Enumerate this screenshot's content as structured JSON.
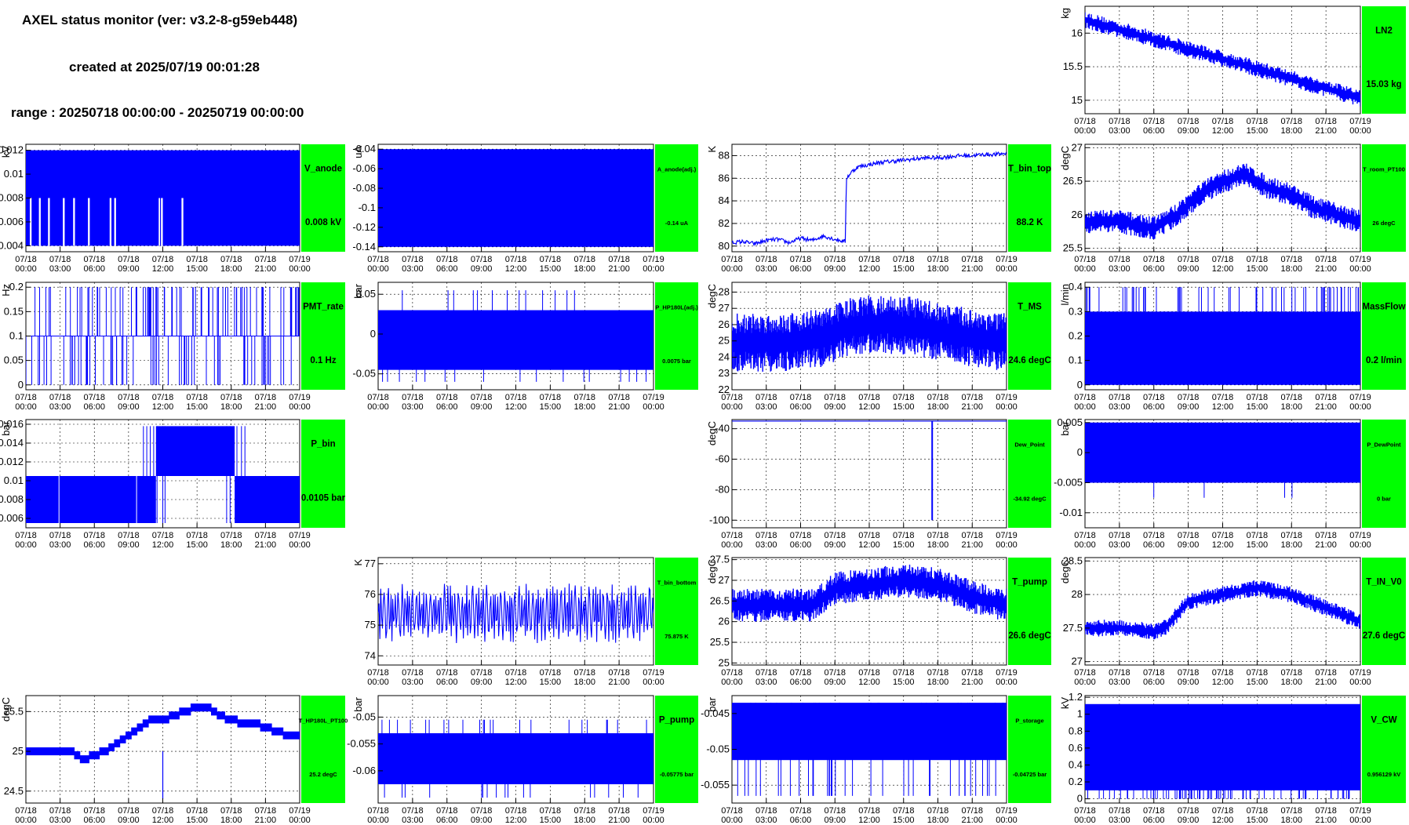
{
  "header": {
    "title": "AXEL status monitor (ver: v3.2-8-g59eb448)",
    "created": "created at 2025/07/19 00:01:28",
    "range": "range : 20250718 00:00:00 - 20250719 00:00:00"
  },
  "colors": {
    "line": "#0000ff",
    "badge": "#00ff00",
    "grid": "#000000"
  },
  "time_labels": [
    "07/18\n00:00",
    "07/18\n03:00",
    "07/18\n06:00",
    "07/18\n09:00",
    "07/18\n12:00",
    "07/18\n15:00",
    "07/18\n18:00",
    "07/18\n21:00",
    "07/19\n00:00"
  ],
  "chart_data": [
    {
      "id": "LN2",
      "type": "line",
      "ylabel": "kg",
      "ylim": [
        14.8,
        16.4
      ],
      "yticks": [
        "15",
        "15.5",
        "16"
      ],
      "ytick_values": [
        15,
        15.5,
        16
      ],
      "label": "LN2",
      "value_text": "15.03 kg",
      "label_size": "large",
      "value_size": "large",
      "series": [
        {
          "kind": "noisy_trend",
          "x": [
            0,
            24
          ],
          "y": [
            16.2,
            15.03
          ],
          "noise": 0.25,
          "n": 260
        }
      ]
    },
    {
      "id": "V_anode",
      "type": "line",
      "ylabel": "kV",
      "ylim": [
        0.0035,
        0.0125
      ],
      "yticks": [
        "0.004",
        "0.006",
        "0.008",
        "0.01",
        "0.012"
      ],
      "ytick_values": [
        0.004,
        0.006,
        0.008,
        0.01,
        0.012
      ],
      "label": "V_anode",
      "value_text": "0.008 kV",
      "label_size": "large",
      "value_size": "large",
      "series": [
        {
          "kind": "band",
          "x": [
            0,
            24
          ],
          "ymin": 0.004,
          "ymax": 0.012,
          "gaps": [
            [
              0.3,
              0.5
            ],
            [
              1.1,
              1.3
            ],
            [
              1.9,
              2.1
            ],
            [
              3.2,
              3.4
            ],
            [
              4.1,
              4.3
            ],
            [
              5.4,
              5.6
            ],
            [
              7.3,
              7.5
            ],
            [
              7.7,
              7.9
            ],
            [
              11.6,
              11.8
            ],
            [
              11.8,
              12.0
            ],
            [
              13.6,
              13.8
            ]
          ],
          "gap_top": 0.008
        }
      ]
    },
    {
      "id": "A_anode",
      "type": "line",
      "ylabel": "uA",
      "ylim": [
        -0.145,
        -0.035
      ],
      "yticks": [
        "-0.14",
        "-0.12",
        "-0.1",
        "-0.08",
        "-0.06",
        "-0.04"
      ],
      "ytick_values": [
        -0.14,
        -0.12,
        -0.1,
        -0.08,
        -0.06,
        -0.04
      ],
      "label": "A_anode(adj.)",
      "value_text": "-0.14 uA",
      "label_size": "small",
      "value_size": "small",
      "series": [
        {
          "kind": "band",
          "x": [
            0,
            24
          ],
          "ymin": -0.14,
          "ymax": -0.04
        }
      ]
    },
    {
      "id": "T_bin_top",
      "type": "line",
      "ylabel": "K",
      "ylim": [
        79.5,
        89
      ],
      "yticks": [
        "80",
        "82",
        "84",
        "86",
        "88"
      ],
      "ytick_values": [
        80,
        82,
        84,
        86,
        88
      ],
      "label": "T_bin_top",
      "value_text": "88.2 K",
      "label_size": "large",
      "value_size": "large",
      "series": [
        {
          "kind": "line",
          "x": [
            0,
            1,
            2,
            3,
            4,
            5,
            6,
            7,
            8,
            9,
            9.9,
            10,
            10.5,
            11,
            12,
            13,
            14,
            15,
            16,
            17,
            18,
            19,
            20,
            21,
            22,
            23,
            24
          ],
          "y": [
            80.3,
            80.4,
            80.2,
            80.5,
            80.6,
            80.3,
            80.7,
            80.5,
            80.9,
            80.6,
            80.4,
            86,
            86.6,
            87,
            87.2,
            87.4,
            87.5,
            87.6,
            87.7,
            87.8,
            87.8,
            87.9,
            88,
            88,
            88.1,
            88.1,
            88.2
          ]
        }
      ]
    },
    {
      "id": "T_room_PT100",
      "type": "line",
      "ylabel": "degC",
      "ylim": [
        25.45,
        27.05
      ],
      "yticks": [
        "25.5",
        "26",
        "26.5",
        "27"
      ],
      "ytick_values": [
        25.5,
        26,
        26.5,
        27
      ],
      "label": "T_room_PT100",
      "value_text": "26 degC",
      "label_size": "small",
      "value_size": "small",
      "series": [
        {
          "kind": "noisy_line",
          "x": [
            0,
            3,
            6,
            8,
            10,
            12,
            14,
            16,
            18,
            20,
            22,
            24
          ],
          "y": [
            25.9,
            25.9,
            25.8,
            26.0,
            26.3,
            26.5,
            26.6,
            26.4,
            26.3,
            26.1,
            26.0,
            25.9
          ],
          "noise": 0.35,
          "n": 300
        }
      ]
    },
    {
      "id": "PMT_rate",
      "type": "line",
      "ylabel": "Hz",
      "ylim": [
        -0.01,
        0.21
      ],
      "yticks": [
        "0",
        "0.05",
        "0.1",
        "0.15",
        "0.2"
      ],
      "ytick_values": [
        0,
        0.05,
        0.1,
        0.15,
        0.2
      ],
      "label": "PMT_rate",
      "value_text": "0.1 Hz",
      "label_size": "large",
      "value_size": "large",
      "series": [
        {
          "kind": "spikes",
          "x": [
            0,
            24
          ],
          "base": 0.1,
          "levels": [
            0,
            0.2
          ],
          "n": 150
        }
      ]
    },
    {
      "id": "P_HP180L",
      "type": "line",
      "ylabel": "bar",
      "ylim": [
        -0.07,
        0.065
      ],
      "yticks": [
        "-0.05",
        "0",
        "0.05"
      ],
      "ytick_values": [
        -0.05,
        0,
        0.05
      ],
      "label": "P_HP180L(adj.)",
      "value_text": "0.0075 bar",
      "label_size": "small",
      "value_size": "small",
      "series": [
        {
          "kind": "band",
          "x": [
            0,
            24
          ],
          "ymin": -0.045,
          "ymax": 0.03
        },
        {
          "kind": "spikes",
          "x": [
            0,
            24
          ],
          "base": 0.0,
          "levels": [
            -0.06,
            0.055
          ],
          "n": 30
        }
      ]
    },
    {
      "id": "T_MS",
      "type": "line",
      "ylabel": "degC",
      "ylim": [
        22,
        28.6
      ],
      "yticks": [
        "22",
        "23",
        "24",
        "25",
        "26",
        "27",
        "28"
      ],
      "ytick_values": [
        22,
        23,
        24,
        25,
        26,
        27,
        28
      ],
      "label": "T_MS",
      "value_text": "24.6 degC",
      "label_size": "large",
      "value_size": "large",
      "series": [
        {
          "kind": "noisy_line",
          "x": [
            0,
            4,
            8,
            10,
            12,
            14,
            16,
            18,
            20,
            22,
            24
          ],
          "y": [
            24.9,
            24.9,
            25.2,
            25.8,
            26.0,
            26.0,
            25.9,
            25.6,
            25.3,
            25.1,
            24.9
          ],
          "noise": 3.6,
          "n": 420
        }
      ]
    },
    {
      "id": "MassFlow",
      "type": "line",
      "ylabel": "l/min",
      "ylim": [
        -0.02,
        0.42
      ],
      "yticks": [
        "0",
        "0.1",
        "0.2",
        "0.3",
        "0.4"
      ],
      "ytick_values": [
        0,
        0.1,
        0.2,
        0.3,
        0.4
      ],
      "label": "MassFlow",
      "value_text": "0.2 l/min",
      "label_size": "large",
      "value_size": "large",
      "series": [
        {
          "kind": "band",
          "x": [
            0,
            24
          ],
          "ymin": 0,
          "ymax": 0.3
        },
        {
          "kind": "spikes",
          "x": [
            0,
            24
          ],
          "base": 0.3,
          "levels": [
            0.4
          ],
          "n": 60
        }
      ]
    },
    {
      "id": "P_bin",
      "type": "line",
      "ylabel": "bar",
      "ylim": [
        0.005,
        0.0165
      ],
      "yticks": [
        "0.006",
        "0.008",
        "0.01",
        "0.012",
        "0.014",
        "0.016"
      ],
      "ytick_values": [
        0.006,
        0.008,
        0.01,
        0.012,
        0.014,
        0.016
      ],
      "label": "P_bin",
      "value_text": "0.0105 bar",
      "label_size": "large",
      "value_size": "large",
      "series": [
        {
          "kind": "pbin",
          "x": [
            0,
            24
          ],
          "low": [
            0.0055,
            0.0105
          ],
          "high": [
            0.0105,
            0.0158
          ],
          "high_window": [
            11.4,
            18.3
          ]
        }
      ]
    },
    {
      "id": "Dew_Point",
      "type": "line",
      "ylabel": "degC",
      "ylim": [
        -105,
        -34
      ],
      "yticks": [
        "-100",
        "-80",
        "-60",
        "-40"
      ],
      "ytick_values": [
        -100,
        -80,
        -60,
        -40
      ],
      "label": "Dew_Point",
      "value_text": "-34.92 degC",
      "label_size": "small",
      "value_size": "small",
      "series": [
        {
          "kind": "flat_spike",
          "x": [
            0,
            24
          ],
          "y": -35,
          "spike_x": 17.5,
          "spike_y": -100
        }
      ]
    },
    {
      "id": "P_DewPoint",
      "type": "line",
      "ylabel": "bar",
      "ylim": [
        -0.0125,
        0.0055
      ],
      "yticks": [
        "-0.01",
        "-0.005",
        "0",
        "0.005"
      ],
      "ytick_values": [
        -0.01,
        -0.005,
        0,
        0.005
      ],
      "label": "P_DewPoint",
      "value_text": "0 bar",
      "label_size": "small",
      "value_size": "small",
      "series": [
        {
          "kind": "band",
          "x": [
            0,
            24
          ],
          "ymin": -0.005,
          "ymax": 0.005
        },
        {
          "kind": "spikes",
          "x": [
            0,
            24
          ],
          "base": 0,
          "levels": [
            -0.0075
          ],
          "n": 4
        }
      ]
    },
    {
      "id": "T_bin_bottom",
      "type": "line",
      "ylabel": "K",
      "ylim": [
        73.7,
        77.2
      ],
      "yticks": [
        "74",
        "75",
        "76",
        "77"
      ],
      "ytick_values": [
        74,
        75,
        76,
        77
      ],
      "label": "T_bin_bottom",
      "value_text": "75.875 K",
      "label_size": "small",
      "value_size": "small",
      "series": [
        {
          "kind": "oscillate",
          "x": [
            0,
            24
          ],
          "center": 75.4,
          "amp": 1.0,
          "n": 320
        }
      ]
    },
    {
      "id": "T_pump",
      "type": "line",
      "ylabel": "degC",
      "ylim": [
        24.95,
        27.55
      ],
      "yticks": [
        "25",
        "25.5",
        "26",
        "26.5",
        "27",
        "27.5"
      ],
      "ytick_values": [
        25,
        25.5,
        26,
        26.5,
        27,
        27.5
      ],
      "label": "T_pump",
      "value_text": "26.6 degC",
      "label_size": "large",
      "value_size": "large",
      "series": [
        {
          "kind": "noisy_line",
          "x": [
            0,
            4,
            7,
            9,
            12,
            15,
            18,
            21,
            24
          ],
          "y": [
            26.4,
            26.4,
            26.4,
            26.8,
            26.9,
            27.0,
            26.9,
            26.6,
            26.4
          ],
          "noise": 0.8,
          "n": 340
        }
      ]
    },
    {
      "id": "T_IN_V0",
      "type": "line",
      "ylabel": "degC",
      "ylim": [
        26.95,
        28.55
      ],
      "yticks": [
        "27",
        "27.5",
        "28",
        "28.5"
      ],
      "ytick_values": [
        27,
        27.5,
        28,
        28.5
      ],
      "label": "T_IN_V0",
      "value_text": "27.6 degC",
      "label_size": "large",
      "value_size": "large",
      "series": [
        {
          "kind": "noisy_line",
          "x": [
            0,
            3,
            6,
            7,
            9,
            12,
            15,
            18,
            21,
            24
          ],
          "y": [
            27.5,
            27.5,
            27.45,
            27.5,
            27.9,
            28.0,
            28.1,
            28.0,
            27.8,
            27.6
          ],
          "noise": 0.25,
          "n": 300
        }
      ]
    },
    {
      "id": "T_HP180L_PT100",
      "type": "line",
      "ylabel": "degC",
      "ylim": [
        24.35,
        25.7
      ],
      "yticks": [
        "24.5",
        "25",
        "25.5"
      ],
      "ytick_values": [
        24.5,
        25,
        25.5
      ],
      "label": "T_HP180L_PT100",
      "value_text": "25.2 degC",
      "label_size": "small",
      "value_size": "small",
      "series": [
        {
          "kind": "step_band",
          "x": [
            0,
            2,
            4,
            5,
            6,
            7,
            8,
            9,
            10,
            11,
            12,
            13,
            14,
            15,
            16,
            17,
            18,
            19,
            20,
            21,
            22,
            23,
            24
          ],
          "y": [
            25.0,
            25.0,
            25.0,
            24.9,
            24.95,
            25.0,
            25.1,
            25.2,
            25.3,
            25.4,
            25.4,
            25.45,
            25.5,
            25.55,
            25.55,
            25.45,
            25.4,
            25.35,
            25.35,
            25.3,
            25.25,
            25.2,
            25.2
          ],
          "w": 0.1
        }
      ]
    },
    {
      "id": "P_pump",
      "type": "line",
      "ylabel": "bar",
      "ylim": [
        -0.066,
        -0.046
      ],
      "yticks": [
        "-0.06",
        "-0.055",
        "-0.05"
      ],
      "ytick_values": [
        -0.06,
        -0.055,
        -0.05
      ],
      "label": "P_pump",
      "value_text": "-0.05775 bar",
      "label_size": "large",
      "value_size": "small",
      "series": [
        {
          "kind": "band",
          "x": [
            0,
            24
          ],
          "ymin": -0.0625,
          "ymax": -0.053
        },
        {
          "kind": "spikes",
          "x": [
            0,
            24
          ],
          "base": -0.0575,
          "levels": [
            -0.065,
            -0.0505
          ],
          "n": 40
        }
      ]
    },
    {
      "id": "P_storage",
      "type": "line",
      "ylabel": "bar",
      "ylim": [
        -0.0575,
        -0.0425
      ],
      "yticks": [
        "-0.055",
        "-0.05",
        "-0.045"
      ],
      "ytick_values": [
        -0.055,
        -0.05,
        -0.045
      ],
      "label": "P_storage",
      "value_text": "-0.04725 bar",
      "label_size": "small",
      "value_size": "small",
      "series": [
        {
          "kind": "band",
          "x": [
            0,
            24
          ],
          "ymin": -0.0515,
          "ymax": -0.0435
        },
        {
          "kind": "spikes",
          "x": [
            0,
            24
          ],
          "base": -0.0475,
          "levels": [
            -0.0565,
            -0.0435
          ],
          "n": 70
        }
      ]
    },
    {
      "id": "V_CW",
      "type": "line",
      "ylabel": "kV",
      "ylim": [
        -0.05,
        1.22
      ],
      "yticks": [
        "0",
        "0.2",
        "0.4",
        "0.6",
        "0.8",
        "1",
        "1.2"
      ],
      "ytick_values": [
        0,
        0.2,
        0.4,
        0.6,
        0.8,
        1,
        1.2
      ],
      "label": "V_CW",
      "value_text": "0.956129 kV",
      "label_size": "large",
      "value_size": "small",
      "series": [
        {
          "kind": "band",
          "x": [
            0,
            24
          ],
          "ymin": 0.1,
          "ymax": 1.12
        },
        {
          "kind": "spikes",
          "x": [
            0,
            24
          ],
          "base": 0.5,
          "levels": [
            0
          ],
          "n": 80
        }
      ]
    }
  ]
}
